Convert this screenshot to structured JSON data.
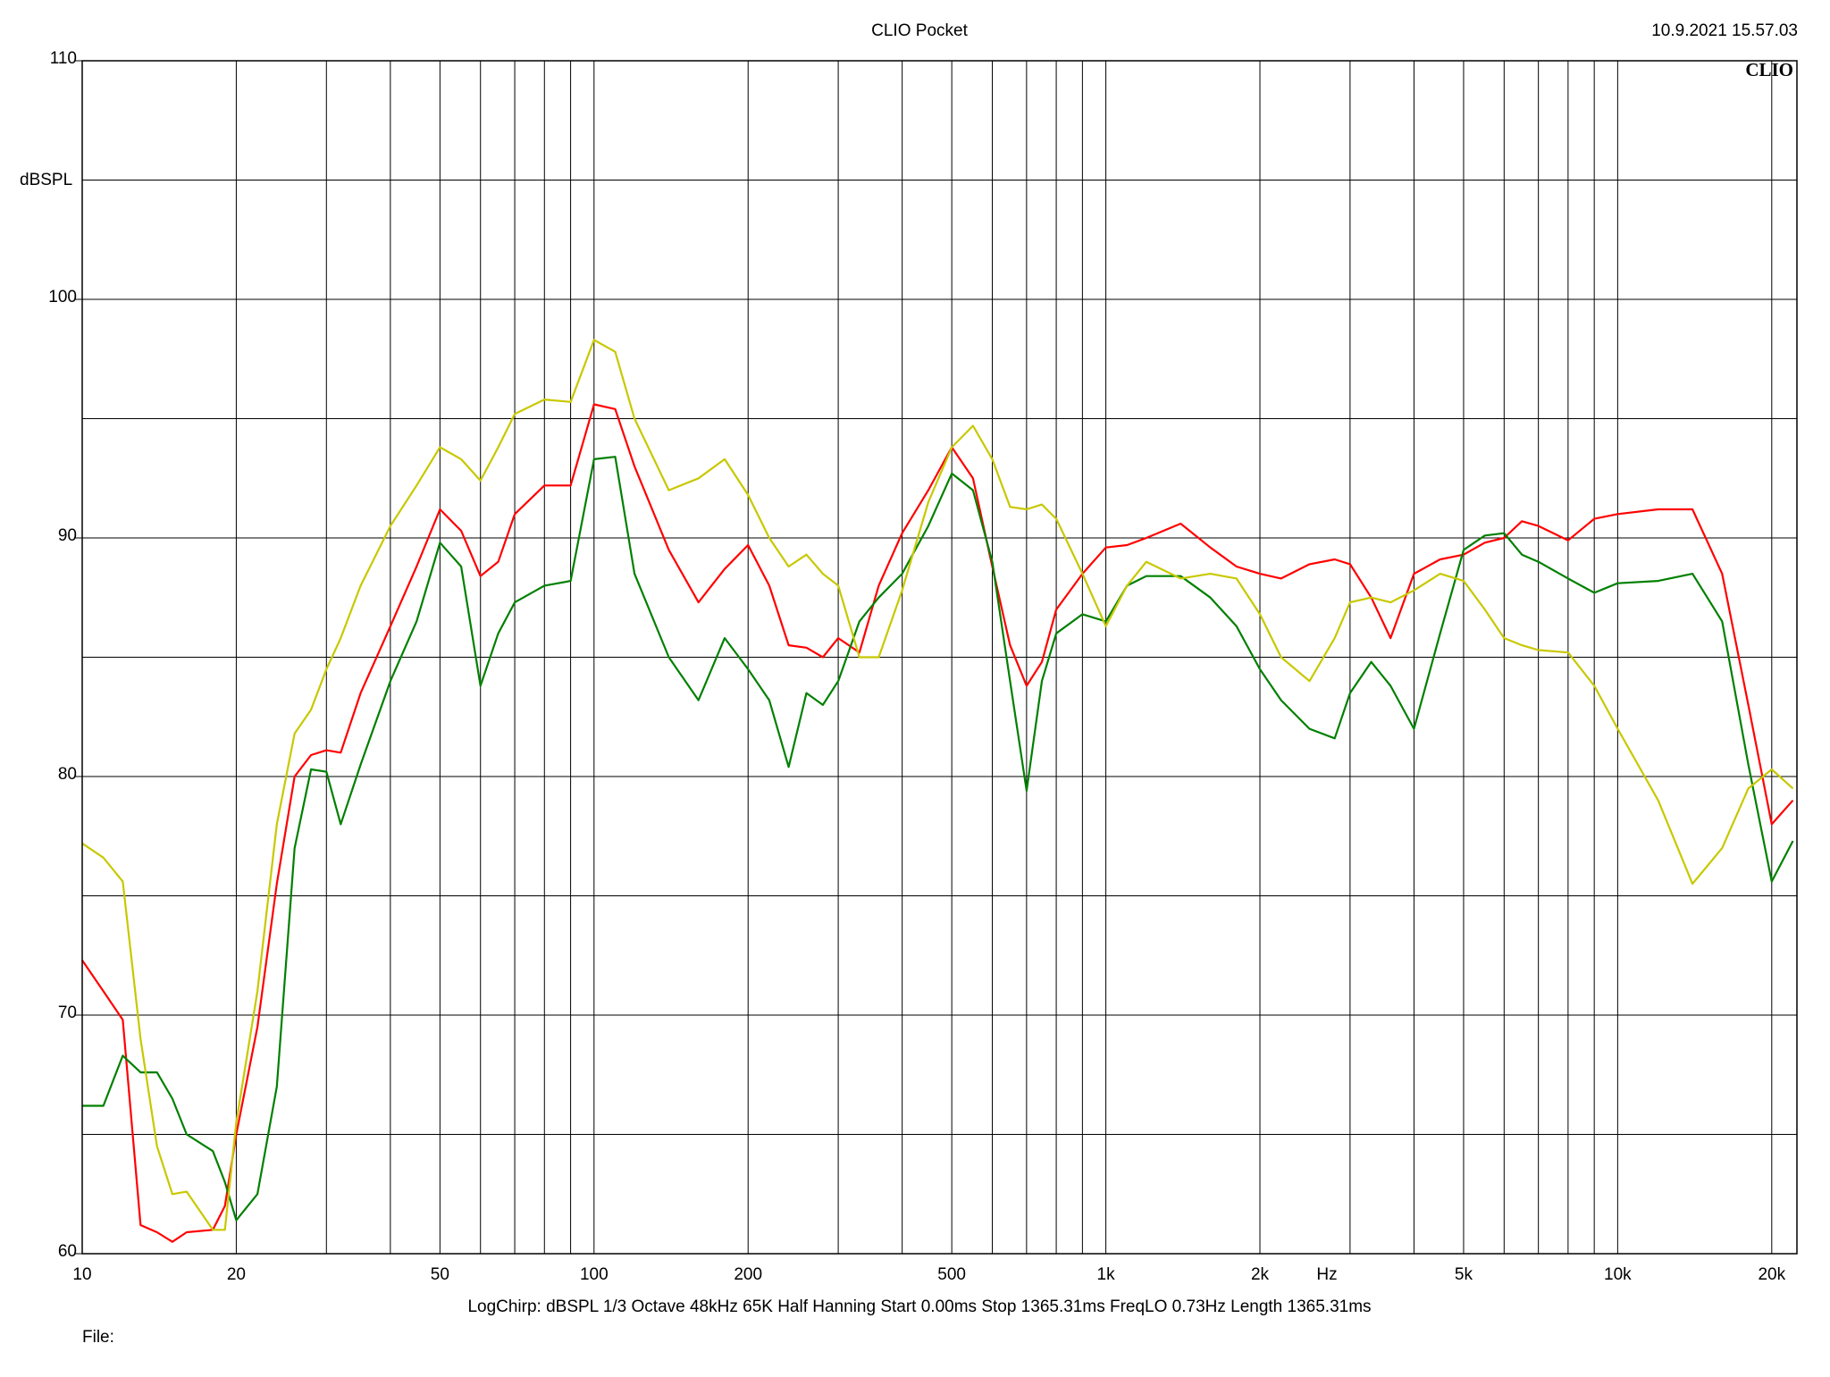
{
  "chart_data": {
    "type": "line",
    "title": "CLIO Pocket",
    "timestamp": "10.9.2021 15.57.03",
    "logo": "CLIO",
    "y_label": "dBSPL",
    "x_label": "Hz",
    "footer": "LogChirp:  dBSPL   1/3 Octave   48kHz   65K   Half Hanning   Start 0.00ms    Stop 1365.31ms    FreqLO 0.73Hz    Length 1365.31ms",
    "file_label": "File:",
    "xscale": "log",
    "grid": true,
    "xlim": [
      10,
      22400
    ],
    "ylim": [
      60,
      110
    ],
    "xticks": [
      10,
      20,
      50,
      100,
      200,
      500,
      {
        "value": 1000,
        "label": "1k"
      },
      {
        "value": 2000,
        "label": "2k"
      },
      {
        "value": 5000,
        "label": "5k"
      },
      {
        "value": 10000,
        "label": "10k"
      },
      {
        "value": 20000,
        "label": "20k"
      }
    ],
    "xminor": [
      30,
      40,
      60,
      70,
      80,
      90,
      300,
      400,
      600,
      700,
      800,
      900,
      3000,
      4000,
      6000,
      7000,
      8000,
      9000
    ],
    "yticks": [
      60,
      70,
      80,
      90,
      100,
      110
    ],
    "yminor": [
      65,
      75,
      85,
      95,
      105
    ],
    "x": [
      10,
      11,
      12,
      13,
      14,
      15,
      16,
      18,
      19,
      20,
      22,
      24,
      26,
      28,
      30,
      32,
      35,
      40,
      45,
      50,
      55,
      60,
      65,
      70,
      80,
      90,
      100,
      110,
      120,
      140,
      160,
      180,
      200,
      220,
      240,
      260,
      280,
      300,
      330,
      360,
      400,
      450,
      500,
      550,
      600,
      650,
      700,
      750,
      800,
      900,
      1000,
      1100,
      1200,
      1400,
      1600,
      1800,
      2000,
      2200,
      2500,
      2800,
      3000,
      3300,
      3600,
      4000,
      4500,
      5000,
      5500,
      6000,
      6500,
      7000,
      8000,
      9000,
      10000,
      12000,
      14000,
      16000,
      18000,
      20000,
      22000
    ],
    "series": [
      {
        "color": "#ff0000",
        "values": [
          72.3,
          71.0,
          69.8,
          61.2,
          60.9,
          60.5,
          60.9,
          61.0,
          62.0,
          65.0,
          69.5,
          75.5,
          80.0,
          80.9,
          81.1,
          81.0,
          83.5,
          86.3,
          88.8,
          91.2,
          90.3,
          88.4,
          89.0,
          91.0,
          92.2,
          92.2,
          95.6,
          95.4,
          93.0,
          89.5,
          87.3,
          88.7,
          89.7,
          88.0,
          85.5,
          85.4,
          85.0,
          85.8,
          85.2,
          88.0,
          90.2,
          92.0,
          93.8,
          92.5,
          88.8,
          85.5,
          83.8,
          84.8,
          87.0,
          88.5,
          89.6,
          89.7,
          90.0,
          90.6,
          89.6,
          88.8,
          88.5,
          88.3,
          88.9,
          89.1,
          88.9,
          87.5,
          85.8,
          88.5,
          89.1,
          89.3,
          89.8,
          90.0,
          90.7,
          90.5,
          89.9,
          90.8,
          91.0,
          91.2,
          91.2,
          88.5,
          83.0,
          78.0,
          79.0
        ]
      },
      {
        "color": "#008000",
        "values": [
          66.2,
          66.2,
          68.3,
          67.6,
          67.6,
          66.5,
          65.0,
          64.3,
          63.0,
          61.4,
          62.5,
          67.0,
          77.0,
          80.3,
          80.2,
          78.0,
          80.5,
          84.0,
          86.5,
          89.8,
          88.8,
          83.8,
          86.0,
          87.3,
          88.0,
          88.2,
          93.3,
          93.4,
          88.5,
          85.0,
          83.2,
          85.8,
          84.5,
          83.2,
          80.4,
          83.5,
          83.0,
          84.0,
          86.5,
          87.5,
          88.5,
          90.5,
          92.7,
          92.0,
          89.0,
          84.0,
          79.4,
          84.0,
          86.0,
          86.8,
          86.5,
          88.0,
          88.4,
          88.4,
          87.5,
          86.3,
          84.5,
          83.2,
          82.0,
          81.6,
          83.5,
          84.8,
          83.8,
          82.0,
          86.0,
          89.5,
          90.1,
          90.2,
          89.3,
          89.0,
          88.3,
          87.7,
          88.1,
          88.2,
          88.5,
          86.5,
          80.5,
          75.6,
          77.3
        ]
      },
      {
        "color": "#c8c800",
        "values": [
          77.2,
          76.6,
          75.6,
          69.0,
          64.5,
          62.5,
          62.6,
          61.0,
          61.0,
          65.5,
          71.0,
          78.0,
          81.8,
          82.8,
          84.5,
          85.8,
          88.0,
          90.5,
          92.2,
          93.8,
          93.3,
          92.4,
          93.8,
          95.2,
          95.8,
          95.7,
          98.3,
          97.8,
          95.0,
          92.0,
          92.5,
          93.3,
          91.8,
          90.0,
          88.8,
          89.3,
          88.5,
          88.0,
          85.0,
          85.0,
          87.8,
          91.5,
          93.8,
          94.7,
          93.3,
          91.3,
          91.2,
          91.4,
          90.8,
          88.5,
          86.3,
          88.0,
          89.0,
          88.3,
          88.5,
          88.3,
          86.8,
          85.0,
          84.0,
          85.8,
          87.3,
          87.5,
          87.3,
          87.8,
          88.5,
          88.2,
          87.0,
          85.8,
          85.5,
          85.3,
          85.2,
          83.8,
          82.0,
          79.0,
          75.5,
          77.0,
          79.5,
          80.3,
          79.5
        ]
      }
    ]
  }
}
